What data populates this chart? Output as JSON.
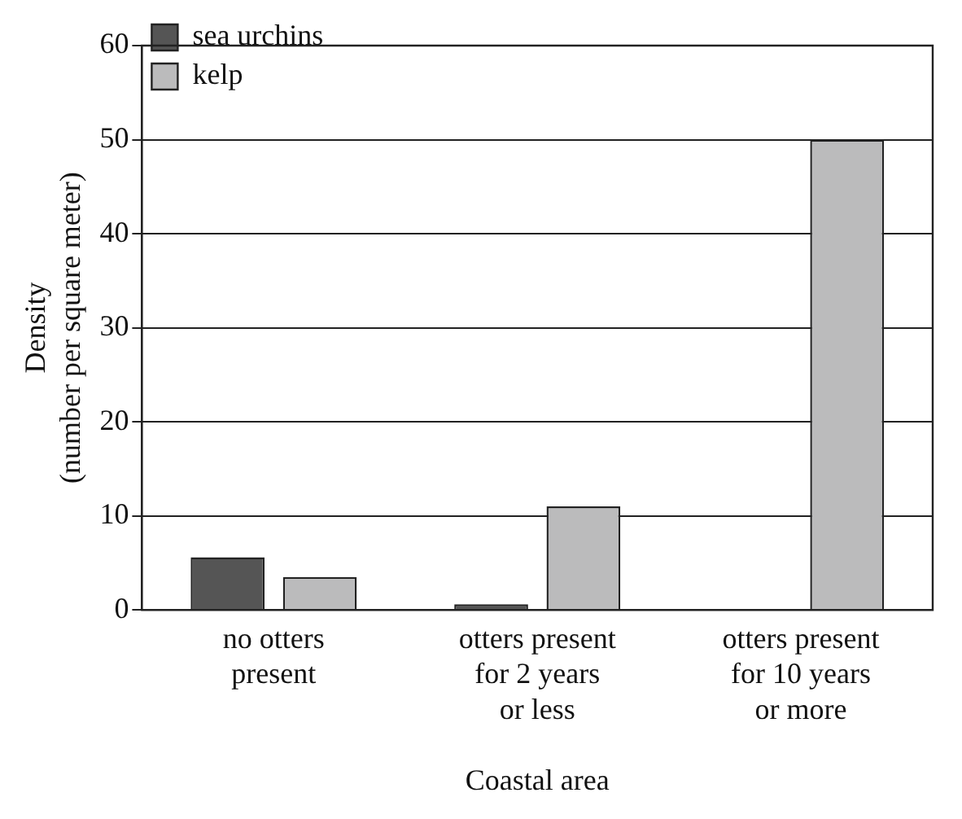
{
  "chart_data": {
    "type": "bar",
    "categories": [
      "no otters\npresent",
      "otters present\nfor 2 years\nor less",
      "otters present\nfor 10 years\nor more"
    ],
    "series": [
      {
        "name": "sea urchins",
        "color": "#555555",
        "values": [
          5.6,
          0.6,
          0
        ]
      },
      {
        "name": "kelp",
        "color": "#bbbbbc",
        "values": [
          3.5,
          11,
          50
        ]
      }
    ],
    "xlabel": "Coastal area",
    "ylabel": "Density\n(number per square meter)",
    "ylim": [
      0,
      60
    ],
    "yticks": [
      0,
      10,
      20,
      30,
      40,
      50,
      60
    ],
    "grid": "y",
    "legend": "top left"
  }
}
